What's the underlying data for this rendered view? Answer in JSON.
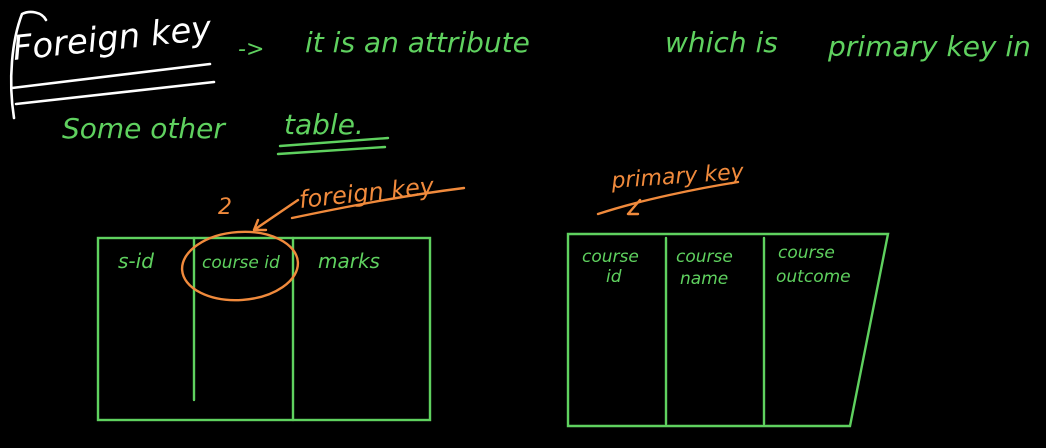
{
  "heading": {
    "term": "Foreign key",
    "arrow": "->",
    "definition_line1": "it is an attribute",
    "definition_line1b": "which is",
    "definition_line1c": "primary key in",
    "definition_line2a": "Some other",
    "definition_line2b": "table."
  },
  "left_table": {
    "annotation_number": "2",
    "annotation_label": "foreign key",
    "columns": [
      "s-id",
      "course id",
      "marks"
    ]
  },
  "right_table": {
    "annotation_label": "primary key",
    "columns": [
      {
        "line1": "course",
        "line2": "id"
      },
      {
        "line1": "course",
        "line2": "name"
      },
      {
        "line1": "course",
        "line2": "outcome"
      }
    ]
  },
  "colors": {
    "background": "#000000",
    "ink_green": "#5fd15f",
    "ink_orange": "#f08a3c",
    "ink_white": "#ffffff"
  }
}
